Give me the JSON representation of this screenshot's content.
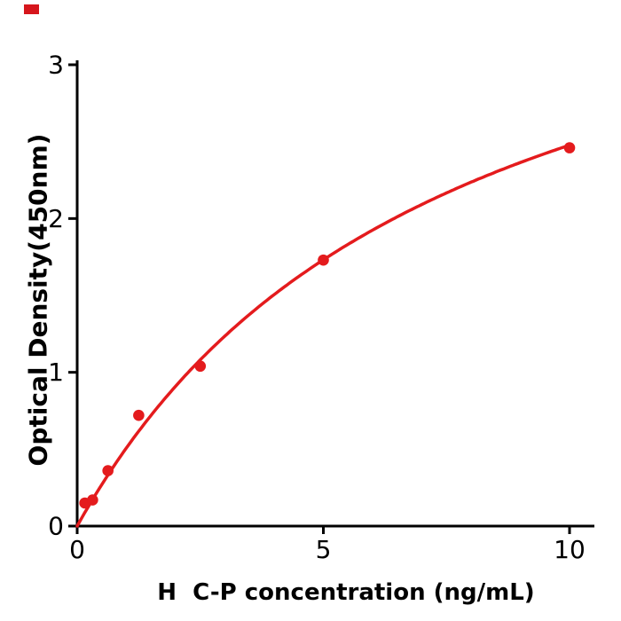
{
  "figure": {
    "background": "#ffffff",
    "axis_color": "#000000",
    "logo_color": "#d6161c"
  },
  "chart_data": {
    "type": "scatter",
    "title": "",
    "xlabel": "H  C-P concentration (ng/mL)",
    "ylabel": "Optical Density(450nm)",
    "x_ticks": [
      0,
      5,
      10
    ],
    "y_ticks": [
      0,
      1,
      2,
      3
    ],
    "xlim": [
      0,
      10.5
    ],
    "ylim": [
      0,
      3
    ],
    "grid": false,
    "legend": "none",
    "point_color": "#e41b1d",
    "line_color": "#e41b1d",
    "points": [
      {
        "x": 0.156,
        "y": 0.15
      },
      {
        "x": 0.313,
        "y": 0.17
      },
      {
        "x": 0.625,
        "y": 0.36
      },
      {
        "x": 1.25,
        "y": 0.72
      },
      {
        "x": 2.5,
        "y": 1.04
      },
      {
        "x": 5,
        "y": 1.73
      },
      {
        "x": 10,
        "y": 2.46
      }
    ],
    "fit_curve": {
      "model": "y = a*x / (b + x)",
      "a": 4.35,
      "b": 7.56,
      "x_range": [
        0,
        10
      ]
    }
  }
}
